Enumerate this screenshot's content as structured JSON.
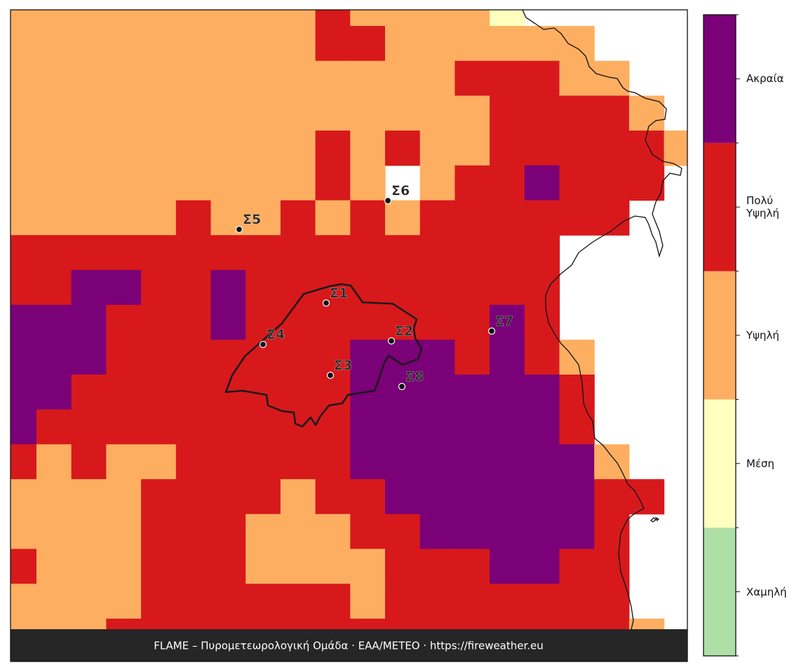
{
  "map": {
    "levels": [
      {
        "label": "Χαμηλή",
        "color": "#addfa6"
      },
      {
        "label": "Μέση",
        "color": "#ffffbf"
      },
      {
        "label": "Υψηλή",
        "color": "#fdae61"
      },
      {
        "label": "Πολύ Υψηλή",
        "color": "#d7191c"
      },
      {
        "label": "Ακραία",
        "color": "#7a0177"
      }
    ],
    "grid": [
      [
        2,
        2,
        2,
        2,
        2,
        2,
        2,
        2,
        2,
        3,
        2,
        2,
        2,
        2,
        1,
        null,
        null,
        null,
        null,
        null
      ],
      [
        2,
        2,
        2,
        2,
        2,
        2,
        2,
        2,
        2,
        3,
        3,
        2,
        2,
        2,
        2,
        2,
        2,
        null,
        null,
        null
      ],
      [
        2,
        2,
        2,
        2,
        2,
        2,
        2,
        2,
        2,
        2,
        2,
        2,
        2,
        3,
        3,
        3,
        2,
        2,
        null,
        null
      ],
      [
        2,
        2,
        2,
        2,
        2,
        2,
        2,
        2,
        2,
        2,
        2,
        2,
        2,
        2,
        3,
        3,
        3,
        3,
        2,
        null
      ],
      [
        2,
        2,
        2,
        2,
        2,
        2,
        2,
        2,
        2,
        3,
        2,
        3,
        2,
        2,
        3,
        3,
        3,
        3,
        3,
        2
      ],
      [
        2,
        2,
        2,
        2,
        2,
        2,
        2,
        2,
        2,
        3,
        2,
        null,
        2,
        3,
        3,
        4,
        3,
        3,
        3,
        null
      ],
      [
        2,
        2,
        2,
        2,
        2,
        3,
        2,
        2,
        3,
        2,
        3,
        2,
        3,
        3,
        3,
        3,
        3,
        3,
        null,
        null
      ],
      [
        3,
        3,
        3,
        3,
        3,
        3,
        3,
        3,
        3,
        3,
        3,
        3,
        3,
        3,
        3,
        3,
        null,
        null,
        null,
        null
      ],
      [
        3,
        3,
        4,
        4,
        3,
        3,
        4,
        3,
        3,
        3,
        3,
        3,
        3,
        3,
        3,
        3,
        null,
        null,
        null,
        null
      ],
      [
        4,
        4,
        4,
        3,
        3,
        3,
        4,
        3,
        3,
        3,
        3,
        3,
        3,
        3,
        4,
        3,
        null,
        null,
        null,
        null
      ],
      [
        4,
        4,
        4,
        3,
        3,
        3,
        3,
        3,
        3,
        3,
        4,
        4,
        4,
        3,
        4,
        3,
        2,
        null,
        null,
        null
      ],
      [
        4,
        4,
        3,
        3,
        3,
        3,
        3,
        3,
        3,
        3,
        4,
        4,
        4,
        4,
        4,
        4,
        3,
        null,
        null,
        null
      ],
      [
        4,
        3,
        3,
        3,
        3,
        3,
        3,
        3,
        3,
        3,
        4,
        4,
        4,
        4,
        4,
        4,
        3,
        null,
        null,
        null
      ],
      [
        3,
        2,
        3,
        2,
        2,
        3,
        3,
        3,
        3,
        3,
        4,
        4,
        4,
        4,
        4,
        4,
        4,
        2,
        null,
        null
      ],
      [
        2,
        2,
        2,
        2,
        3,
        3,
        3,
        3,
        2,
        3,
        3,
        4,
        4,
        4,
        4,
        4,
        4,
        3,
        3,
        null
      ],
      [
        2,
        2,
        2,
        2,
        3,
        3,
        3,
        2,
        2,
        2,
        3,
        3,
        4,
        4,
        4,
        4,
        4,
        3,
        null,
        null
      ],
      [
        3,
        2,
        2,
        2,
        3,
        3,
        3,
        2,
        2,
        2,
        2,
        3,
        3,
        3,
        4,
        4,
        3,
        3,
        null,
        null
      ],
      [
        2,
        2,
        2,
        2,
        3,
        3,
        3,
        3,
        3,
        3,
        2,
        3,
        3,
        3,
        3,
        3,
        3,
        3,
        null,
        null
      ],
      [
        2,
        2,
        2,
        3,
        3,
        3,
        3,
        3,
        3,
        3,
        3,
        3,
        3,
        3,
        3,
        3,
        3,
        3,
        2,
        null
      ]
    ],
    "stations": [
      "Σ1",
      "Σ2",
      "Σ3",
      "Σ4",
      "Σ5",
      "Σ6",
      "Σ7",
      "Σ8"
    ]
  },
  "footer": "FLAME – Πυρομετεωρολογική Ομάδα · ΕΑΑ/METEO · https://fireweather.eu"
}
